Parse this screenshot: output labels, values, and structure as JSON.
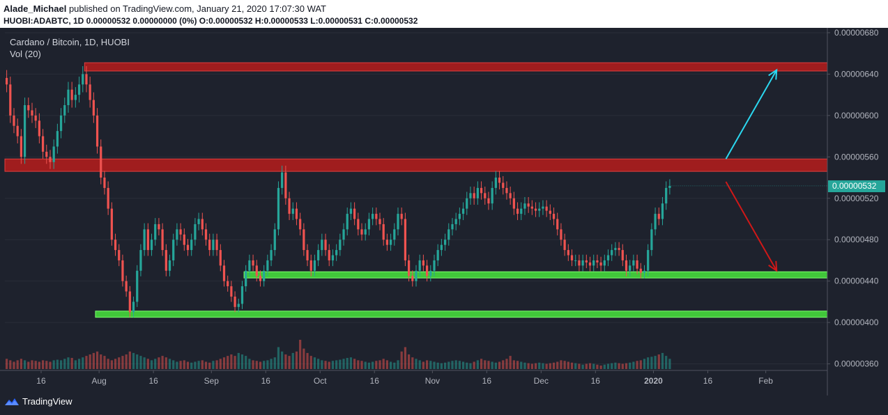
{
  "header": {
    "author": "Alade_Michael",
    "published_text": "published on TradingView.com, January 21, 2020 17:07:30 WAT",
    "ohlc_line": "HUOBI:ADABTC, 1D 0.00000532 0.00000000 (0%) O:0.00000532 H:0.00000533 L:0.00000531 C:0.00000532"
  },
  "legend": {
    "symbol": "Cardano / Bitcoin, 1D, HUOBI",
    "volume": "Vol (20)"
  },
  "footer": {
    "brand": "TradingView"
  },
  "colors": {
    "background": "#1e222d",
    "up": "#26a69a",
    "down": "#ef5350",
    "resistance_zone": "#b71c1c",
    "support_zone": "#43d13b",
    "bull_arrow": "#2bd8f0",
    "bear_arrow": "#d01818",
    "axis_text": "#b2b5be"
  },
  "chart_data": {
    "type": "candlestick",
    "title": "Cardano / Bitcoin, 1D, HUOBI",
    "y_axis": {
      "ylim": [
        3.55e-06,
        6.82e-06
      ],
      "tick_labels": [
        "0.00000680",
        "0.00000640",
        "0.00000600",
        "0.00000560",
        "0.00000520",
        "0.00000480",
        "0.00000440",
        "0.00000400",
        "0.00000360"
      ],
      "tick_values": [
        6.8e-06,
        6.4e-06,
        6e-06,
        5.6e-06,
        5.2e-06,
        4.8e-06,
        4.4e-06,
        4e-06,
        3.6e-06
      ]
    },
    "x_axis": {
      "start_date": "2019-07-06",
      "end_date": "2020-02-18",
      "tick_labels": [
        {
          "label": "16",
          "date": "2019-07-16"
        },
        {
          "label": "Aug",
          "date": "2019-08-01"
        },
        {
          "label": "16",
          "date": "2019-08-16"
        },
        {
          "label": "Sep",
          "date": "2019-09-01"
        },
        {
          "label": "16",
          "date": "2019-09-16"
        },
        {
          "label": "Oct",
          "date": "2019-10-01"
        },
        {
          "label": "16",
          "date": "2019-10-16"
        },
        {
          "label": "Nov",
          "date": "2019-11-01"
        },
        {
          "label": "16",
          "date": "2019-11-16"
        },
        {
          "label": "Dec",
          "date": "2019-12-01"
        },
        {
          "label": "16",
          "date": "2019-12-16"
        },
        {
          "label": "2020",
          "date": "2020-01-01"
        },
        {
          "label": "16",
          "date": "2020-01-16"
        },
        {
          "label": "Feb",
          "date": "2020-02-01"
        }
      ]
    },
    "last_price_label": "0.00000532",
    "last_price": 5.32e-06,
    "zones": [
      {
        "type": "resistance",
        "start": "2019-07-28",
        "end": "2020-02-18",
        "low": 6.43e-06,
        "high": 6.51e-06
      },
      {
        "type": "resistance",
        "start": "2019-07-06",
        "end": "2020-02-18",
        "low": 5.46e-06,
        "high": 5.58e-06
      },
      {
        "type": "support",
        "start": "2019-09-10",
        "end": "2020-02-18",
        "low": 4.43e-06,
        "high": 4.49e-06
      },
      {
        "type": "support",
        "start": "2019-07-31",
        "end": "2020-02-18",
        "low": 4.05e-06,
        "high": 4.11e-06
      }
    ],
    "arrows": [
      {
        "direction": "up",
        "from_date": "2020-01-21",
        "from_price": 5.58e-06,
        "to_date": "2020-02-04",
        "to_price": 6.44e-06
      },
      {
        "direction": "down",
        "from_date": "2020-01-21",
        "from_price": 5.36e-06,
        "to_date": "2020-02-04",
        "to_price": 4.5e-06
      }
    ],
    "candles": {
      "start_date": "2019-07-06",
      "note": "daily close prices ×1e-8 BTC, one per day from start_date",
      "closes": [
        630,
        600,
        590,
        580,
        560,
        610,
        605,
        600,
        595,
        580,
        565,
        560,
        555,
        570,
        585,
        600,
        610,
        625,
        615,
        620,
        630,
        640,
        630,
        615,
        600,
        570,
        540,
        530,
        510,
        480,
        470,
        460,
        440,
        430,
        410,
        420,
        450,
        470,
        490,
        470,
        480,
        495,
        490,
        470,
        450,
        460,
        480,
        490,
        485,
        475,
        470,
        480,
        495,
        500,
        490,
        480,
        470,
        480,
        470,
        455,
        440,
        435,
        425,
        415,
        418,
        435,
        450,
        460,
        455,
        445,
        440,
        450,
        460,
        470,
        490,
        530,
        545,
        520,
        505,
        510,
        500,
        490,
        470,
        460,
        450,
        460,
        470,
        480,
        470,
        460,
        465,
        470,
        480,
        490,
        505,
        510,
        500,
        490,
        485,
        490,
        500,
        505,
        500,
        495,
        480,
        475,
        480,
        490,
        505,
        500,
        460,
        445,
        440,
        450,
        460,
        455,
        445,
        450,
        460,
        470,
        475,
        480,
        490,
        495,
        500,
        505,
        510,
        520,
        525,
        520,
        530,
        525,
        520,
        515,
        530,
        540,
        535,
        530,
        525,
        520,
        510,
        505,
        510,
        515,
        512,
        510,
        508,
        510,
        512,
        508,
        505,
        500,
        490,
        480,
        470,
        465,
        460,
        460,
        455,
        460,
        458,
        455,
        460,
        458,
        455,
        460,
        465,
        470,
        472,
        470,
        460,
        450,
        455,
        460,
        452,
        448,
        450,
        470,
        490,
        505,
        500,
        515,
        530,
        532
      ]
    },
    "volume": {
      "note": "relative daily volume (0–1), aligned with candles",
      "values": [
        0.35,
        0.3,
        0.25,
        0.3,
        0.35,
        0.3,
        0.25,
        0.3,
        0.28,
        0.25,
        0.3,
        0.28,
        0.25,
        0.3,
        0.32,
        0.3,
        0.35,
        0.4,
        0.38,
        0.3,
        0.35,
        0.4,
        0.45,
        0.5,
        0.55,
        0.6,
        0.5,
        0.45,
        0.35,
        0.3,
        0.35,
        0.4,
        0.45,
        0.5,
        0.6,
        0.55,
        0.5,
        0.45,
        0.4,
        0.35,
        0.3,
        0.35,
        0.4,
        0.45,
        0.4,
        0.35,
        0.3,
        0.25,
        0.28,
        0.3,
        0.25,
        0.22,
        0.25,
        0.28,
        0.3,
        0.25,
        0.22,
        0.28,
        0.3,
        0.35,
        0.4,
        0.45,
        0.5,
        0.45,
        0.55,
        0.5,
        0.45,
        0.35,
        0.3,
        0.28,
        0.25,
        0.28,
        0.3,
        0.35,
        0.4,
        0.75,
        0.6,
        0.5,
        0.45,
        0.55,
        0.6,
        1.0,
        0.7,
        0.55,
        0.45,
        0.4,
        0.35,
        0.3,
        0.28,
        0.25,
        0.28,
        0.3,
        0.32,
        0.35,
        0.38,
        0.4,
        0.35,
        0.3,
        0.28,
        0.25,
        0.22,
        0.25,
        0.28,
        0.3,
        0.35,
        0.3,
        0.25,
        0.22,
        0.3,
        0.6,
        0.75,
        0.5,
        0.4,
        0.35,
        0.3,
        0.25,
        0.3,
        0.28,
        0.25,
        0.22,
        0.2,
        0.22,
        0.25,
        0.28,
        0.3,
        0.28,
        0.25,
        0.22,
        0.2,
        0.25,
        0.3,
        0.35,
        0.3,
        0.28,
        0.25,
        0.22,
        0.25,
        0.3,
        0.35,
        0.45,
        0.3,
        0.28,
        0.25,
        0.22,
        0.2,
        0.18,
        0.2,
        0.22,
        0.2,
        0.18,
        0.2,
        0.22,
        0.25,
        0.3,
        0.28,
        0.25,
        0.22,
        0.2,
        0.18,
        0.15,
        0.18,
        0.2,
        0.18,
        0.15,
        0.12,
        0.15,
        0.18,
        0.2,
        0.22,
        0.2,
        0.18,
        0.2,
        0.22,
        0.25,
        0.28,
        0.3,
        0.35,
        0.4,
        0.42,
        0.45,
        0.5,
        0.55,
        0.45,
        0.35,
        0.3,
        0.32,
        0.35,
        0.3
      ]
    }
  }
}
